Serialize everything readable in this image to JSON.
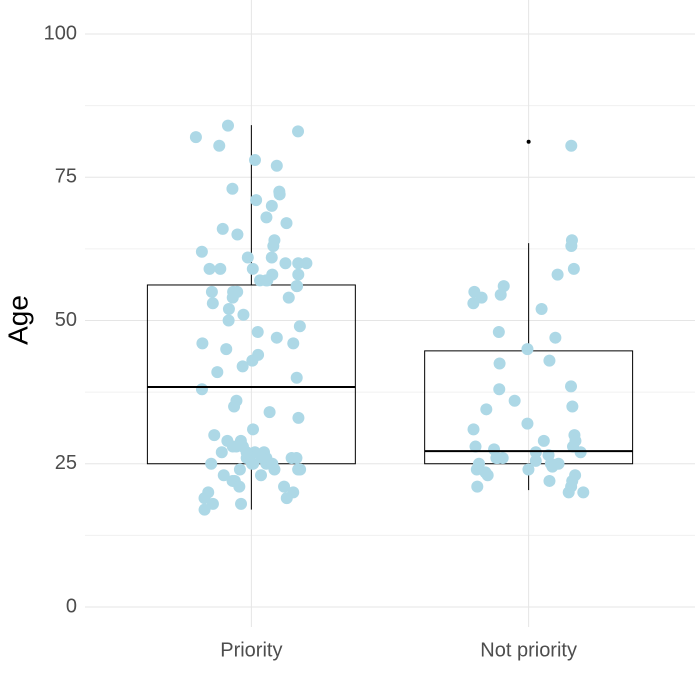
{
  "chart_data": {
    "type": "box",
    "y_label": "Age",
    "categories": [
      "Priority",
      "Not priority"
    ],
    "ylim": [
      0,
      100
    ],
    "yticks": [
      0,
      25,
      50,
      75,
      100
    ],
    "yminor": [
      12.5,
      37.5,
      62.5,
      87.5
    ],
    "grid": true,
    "box_color": "#000000",
    "point_color": "#add8e6",
    "boxes": [
      {
        "q1": 25,
        "median": 38.4,
        "q3": 56.2,
        "whisker_low": 17,
        "whisker_high": 84.1,
        "outliers": []
      },
      {
        "q1": 25,
        "median": 27.2,
        "q3": 44.7,
        "whisker_low": 20.4,
        "whisker_high": 63.5,
        "outliers": [
          81.2
        ]
      }
    ],
    "points": [
      [
        82,
        83,
        84,
        80.5,
        77,
        78,
        73,
        72.5,
        72,
        71,
        70,
        68,
        67,
        66,
        65,
        64,
        63,
        62,
        61,
        61,
        60,
        60,
        59,
        59,
        58,
        58,
        57,
        57,
        56,
        56,
        55,
        55,
        54,
        54,
        53,
        52,
        51,
        50,
        49,
        48,
        47,
        46,
        46,
        45,
        44,
        43,
        42,
        41,
        40,
        38,
        36,
        35,
        34,
        33,
        31,
        30,
        29,
        29,
        28,
        28,
        28,
        27,
        27,
        27,
        26,
        26,
        26,
        26,
        25,
        25,
        25,
        25,
        24,
        24,
        24,
        23,
        23,
        22,
        22,
        21,
        21,
        20,
        20,
        19,
        19,
        18,
        18,
        17,
        60,
        59,
        57,
        55,
        27,
        26,
        25,
        24
      ],
      [
        80.5,
        64,
        63,
        59,
        58,
        56,
        55,
        54.5,
        54,
        53,
        52,
        48,
        47,
        45,
        43,
        42.5,
        38.5,
        38,
        36,
        35,
        34.5,
        32,
        31,
        30,
        29,
        29,
        28,
        28,
        27.5,
        27,
        27,
        26.5,
        26,
        26,
        26,
        25.5,
        25,
        25,
        25,
        24.5,
        24,
        24,
        23.5,
        23,
        23,
        22,
        22,
        21,
        21,
        20,
        20
      ]
    ]
  }
}
